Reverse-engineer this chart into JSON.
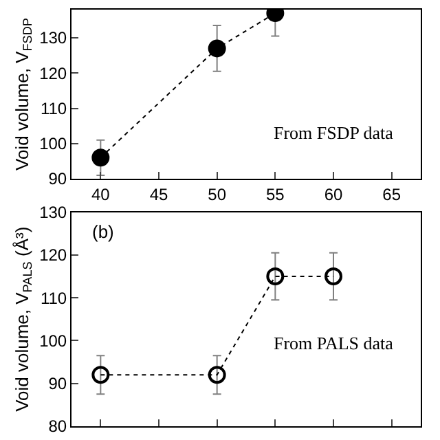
{
  "chart_data": [
    {
      "type": "line",
      "ylabel": "Void volume, V$_{FSDP}$",
      "x": [
        40,
        50,
        55
      ],
      "xlim": [
        37.5,
        67.5
      ],
      "xticks": [
        40,
        45,
        50,
        55,
        60,
        65
      ],
      "ylim": [
        90,
        138
      ],
      "yticks": [
        90,
        100,
        110,
        120,
        130
      ],
      "marker": "circle",
      "line_style": "dotted",
      "grid": false,
      "series": [
        {
          "color": "#000000",
          "values": [
            96,
            127,
            137
          ],
          "errors": [
            5,
            6.5,
            6.5
          ]
        }
      ],
      "annotations": [
        "From FSDP data"
      ]
    },
    {
      "type": "line",
      "ylabel": "Void volume, V$_{PALS}$ (Å³)",
      "x": [
        40,
        50,
        55,
        60
      ],
      "xlim": [
        37.5,
        67.5
      ],
      "ylim": [
        80,
        130
      ],
      "yticks": [
        80,
        90,
        100,
        110,
        120,
        130
      ],
      "tick_labels": "y",
      "marker": "circle-open",
      "line_style": "dotted",
      "grid": false,
      "series": [
        {
          "color": "#000000",
          "values": [
            92,
            92,
            115,
            115
          ],
          "errors": [
            4.5,
            4.5,
            5.5,
            5.5
          ]
        }
      ],
      "annotations": [
        "(b)",
        "From PALS data"
      ]
    }
  ]
}
